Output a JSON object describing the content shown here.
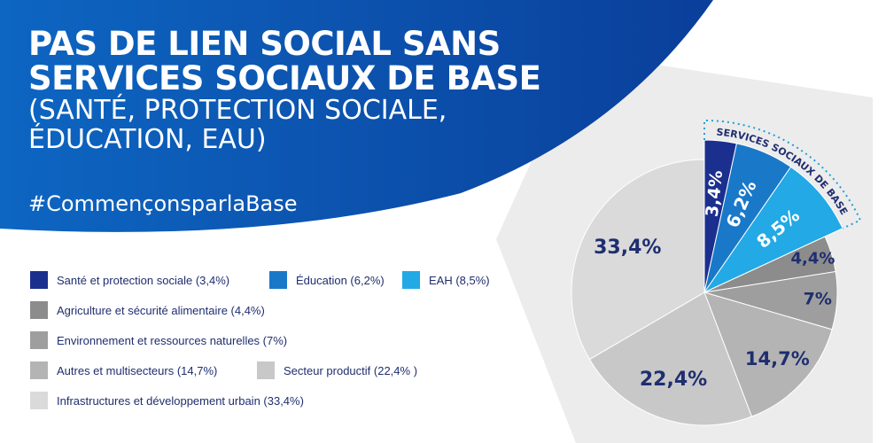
{
  "header": {
    "title_line1": "PAS DE LIEN SOCIAL SANS",
    "title_line2": "SERVICES SOCIAUX DE BASE",
    "subtitle_line1": "(SANTÉ, PROTECTION SOCIALE,",
    "subtitle_line2": "ÉDUCATION, EAU)",
    "hashtag": "#CommençonsparlaBase"
  },
  "colors": {
    "header_bg": "#0d66c2",
    "header_bg_dark": "#0a3f9a",
    "label_dark": "#1f2e6f",
    "label_light": "#ffffff",
    "backdrop": "#ececec",
    "dotted_arc": "#1f9fd6"
  },
  "legend": [
    {
      "label": "Santé et protection sociale (3,4%)",
      "color": "#1b2f8f"
    },
    {
      "label": "Éducation (6,2%)",
      "color": "#1a78c9"
    },
    {
      "label": "EAH (8,5%)",
      "color": "#22a9e6"
    },
    {
      "label": "Agriculture et sécurité alimentaire (4,4%)",
      "color": "#8c8c8c"
    },
    {
      "label": "Environnement et ressources naturelles (7%)",
      "color": "#9e9e9e"
    },
    {
      "label": "Autres et multisecteurs (14,7%)",
      "color": "#b4b4b4"
    },
    {
      "label": "Secteur productif (22,4% )",
      "color": "#c8c8c8"
    },
    {
      "label": "Infrastructures et développement urbain (33,4%)",
      "color": "#dadada"
    }
  ],
  "chart_data": {
    "type": "pie",
    "start": "12 o'clock, clockwise",
    "group_label": "SERVICES SOCIAUX DE BASE",
    "slices": [
      {
        "name": "Santé et protection sociale",
        "value": 3.4,
        "label": "3,4%",
        "color": "#1b2f8f",
        "exploded": true,
        "label_color": "#ffffff"
      },
      {
        "name": "Éducation",
        "value": 6.2,
        "label": "6,2%",
        "color": "#1a78c9",
        "exploded": true,
        "label_color": "#ffffff"
      },
      {
        "name": "EAH",
        "value": 8.5,
        "label": "8,5%",
        "color": "#22a9e6",
        "exploded": true,
        "label_color": "#ffffff"
      },
      {
        "name": "Agriculture et sécurité alimentaire",
        "value": 4.4,
        "label": "4,4%",
        "color": "#8c8c8c",
        "exploded": false,
        "label_color": "#1f2e6f"
      },
      {
        "name": "Environnement et ressources naturelles",
        "value": 7,
        "label": "7%",
        "color": "#9e9e9e",
        "exploded": false,
        "label_color": "#1f2e6f"
      },
      {
        "name": "Autres et multisecteurs",
        "value": 14.7,
        "label": "14,7%",
        "color": "#b4b4b4",
        "exploded": false,
        "label_color": "#1f2e6f"
      },
      {
        "name": "Secteur productif",
        "value": 22.4,
        "label": "22,4%",
        "color": "#c8c8c8",
        "exploded": false,
        "label_color": "#1f2e6f"
      },
      {
        "name": "Infrastructures et développement urbain",
        "value": 33.4,
        "label": "33,4%",
        "color": "#dadada",
        "exploded": false,
        "label_color": "#1f2e6f"
      }
    ]
  }
}
